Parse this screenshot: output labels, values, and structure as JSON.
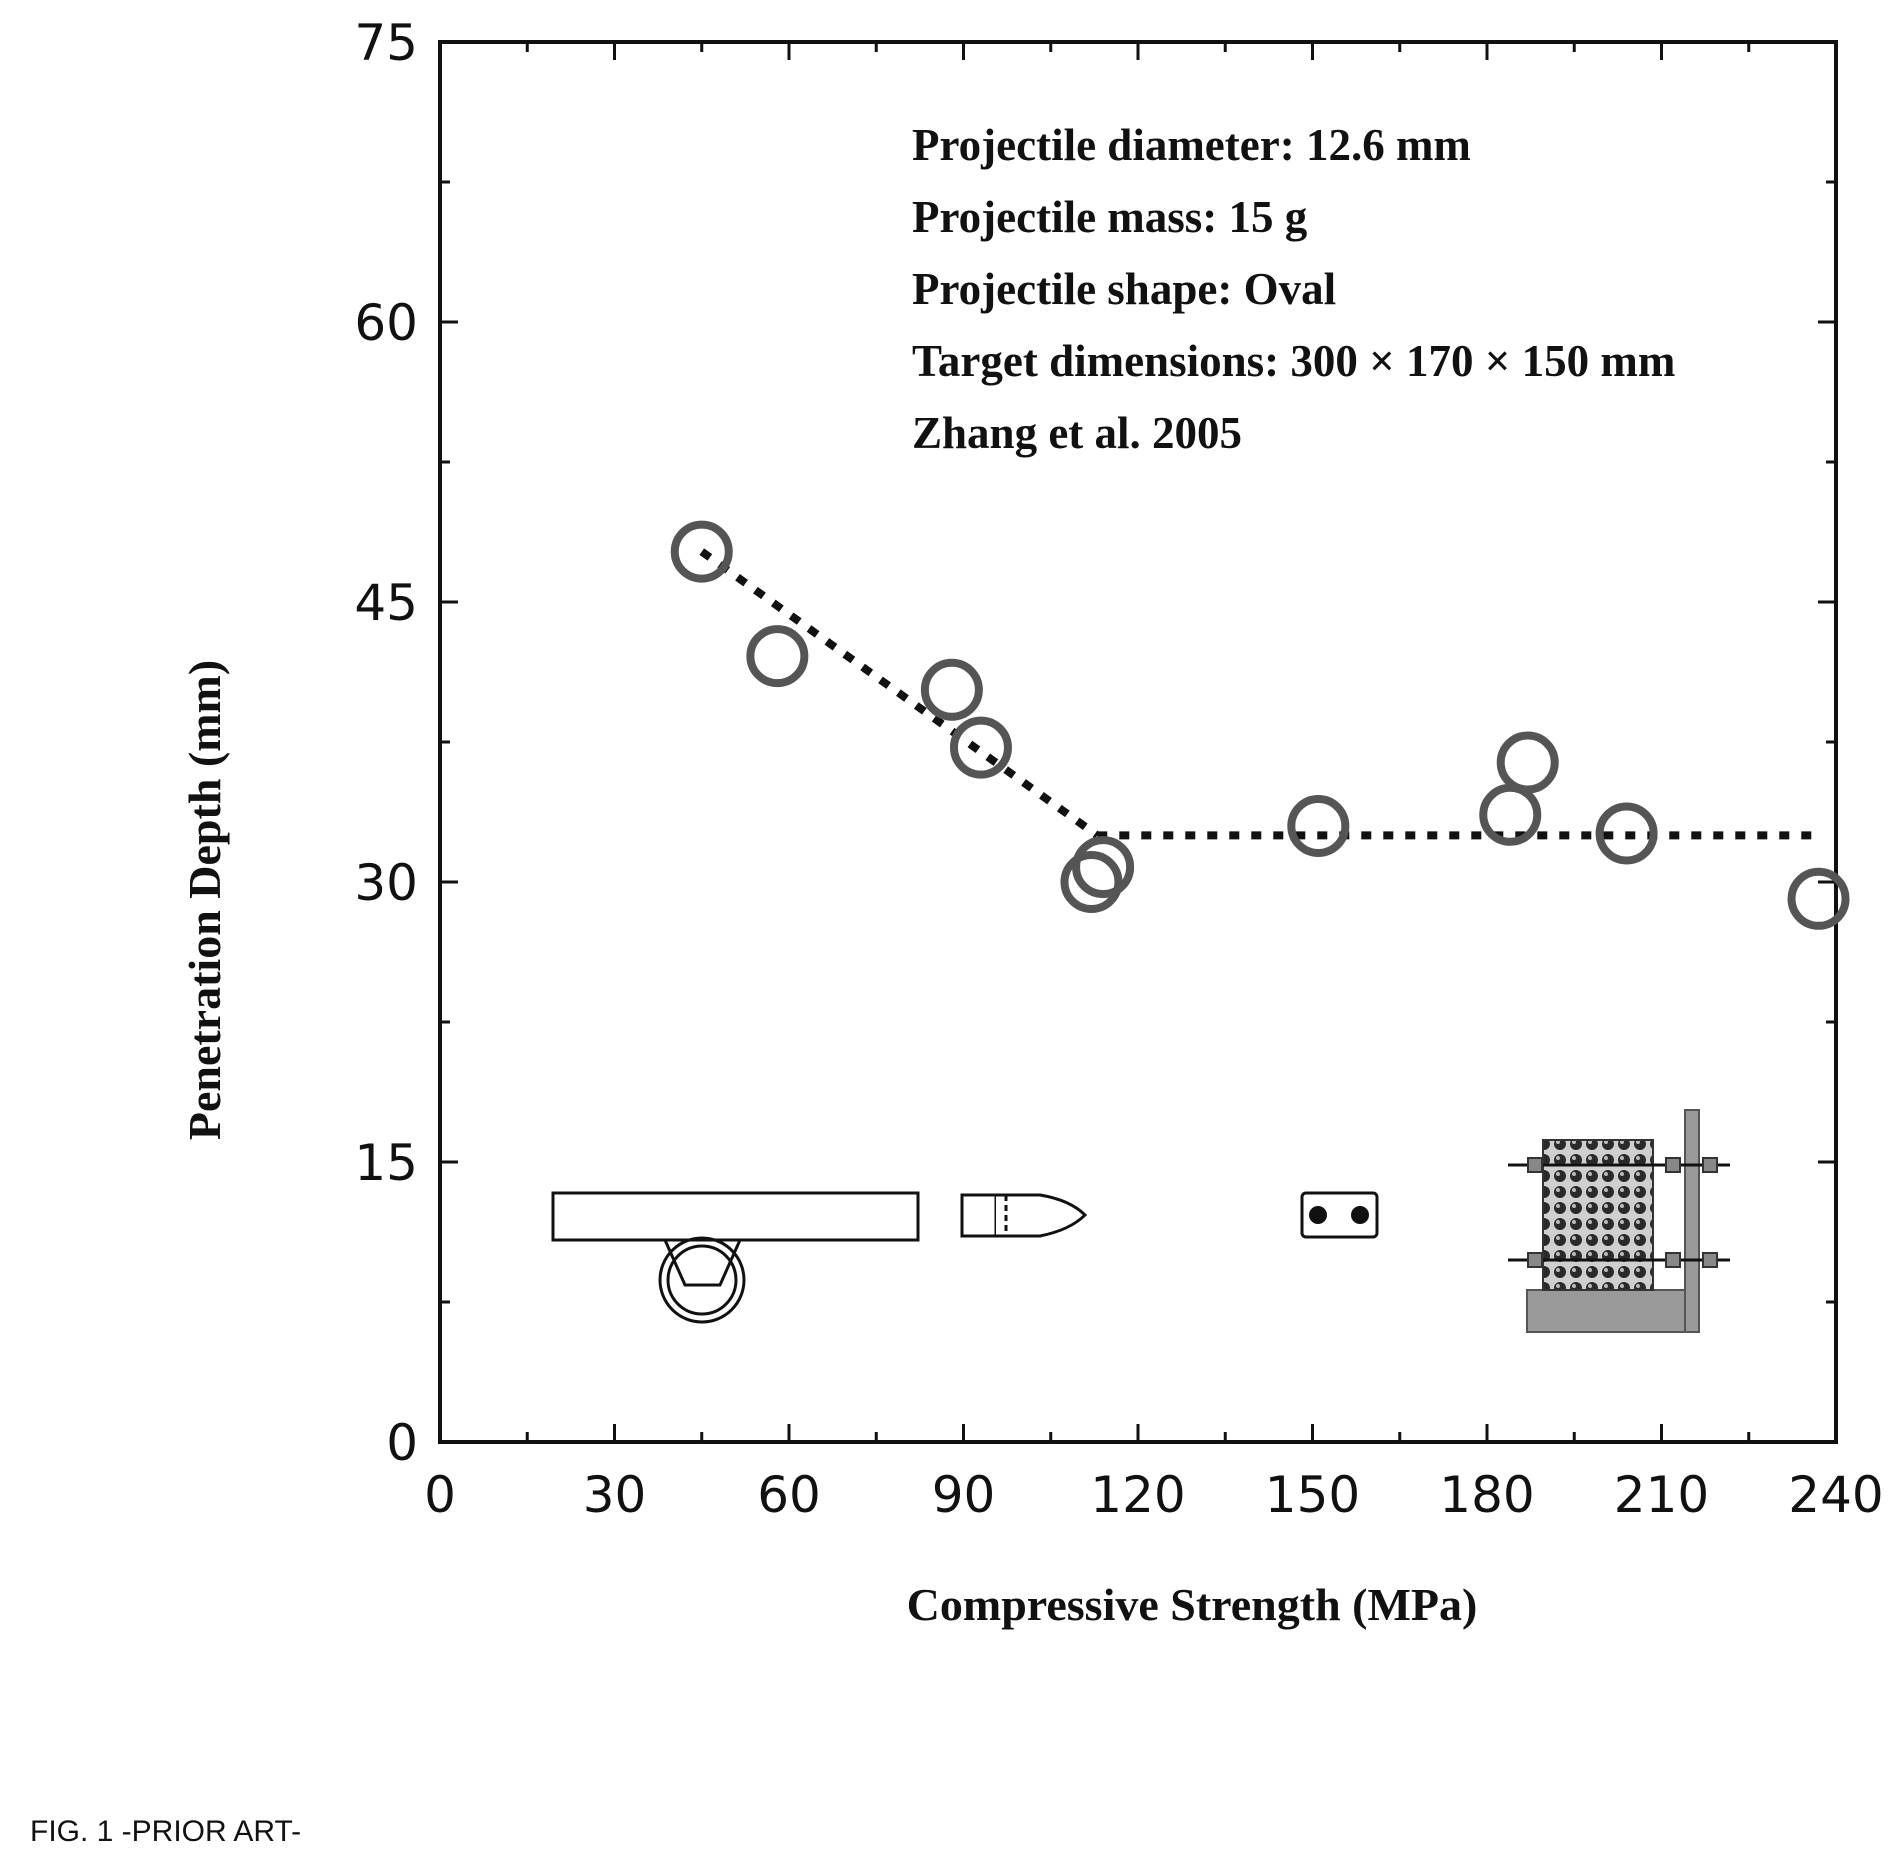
{
  "chart_data": {
    "type": "scatter",
    "title": "",
    "xlabel": "Compressive Strength (MPa)",
    "ylabel": "Penetration Depth (mm)",
    "xlim": [
      0,
      240
    ],
    "ylim": [
      0,
      75
    ],
    "xticks": [
      "0",
      "30",
      "60",
      "90",
      "120",
      "150",
      "180",
      "210",
      "240"
    ],
    "yticks": [
      "0",
      "15",
      "30",
      "45",
      "60",
      "75"
    ],
    "grid": false,
    "marker": "open-circle",
    "series": [
      {
        "x": [
          45,
          58,
          88,
          93,
          112,
          114,
          151,
          184,
          187,
          204,
          237
        ],
        "y": [
          47.7,
          42.1,
          40.3,
          37.2,
          30.0,
          30.8,
          33.0,
          33.6,
          36.4,
          32.6,
          29.1
        ]
      }
    ],
    "trend_lines": [
      {
        "style": "dotted",
        "x": [
          45,
          113
        ],
        "y": [
          47.7,
          32.5
        ]
      },
      {
        "style": "dotted",
        "x": [
          113,
          237
        ],
        "y": [
          32.5,
          32.5
        ]
      }
    ],
    "annotations": [
      "Projectile diameter: 12.6 mm",
      "Projectile mass: 15 g",
      "Projectile shape: Oval",
      "Target dimensions: 300 × 170 × 150 mm",
      "Zhang et al. 2005"
    ],
    "inset_illustrations": [
      "test-gun-apparatus-icon",
      "projectile-icon",
      "target-icon",
      "target-fixture-icon"
    ]
  },
  "caption": "FIG. 1  -PRIOR ART-"
}
